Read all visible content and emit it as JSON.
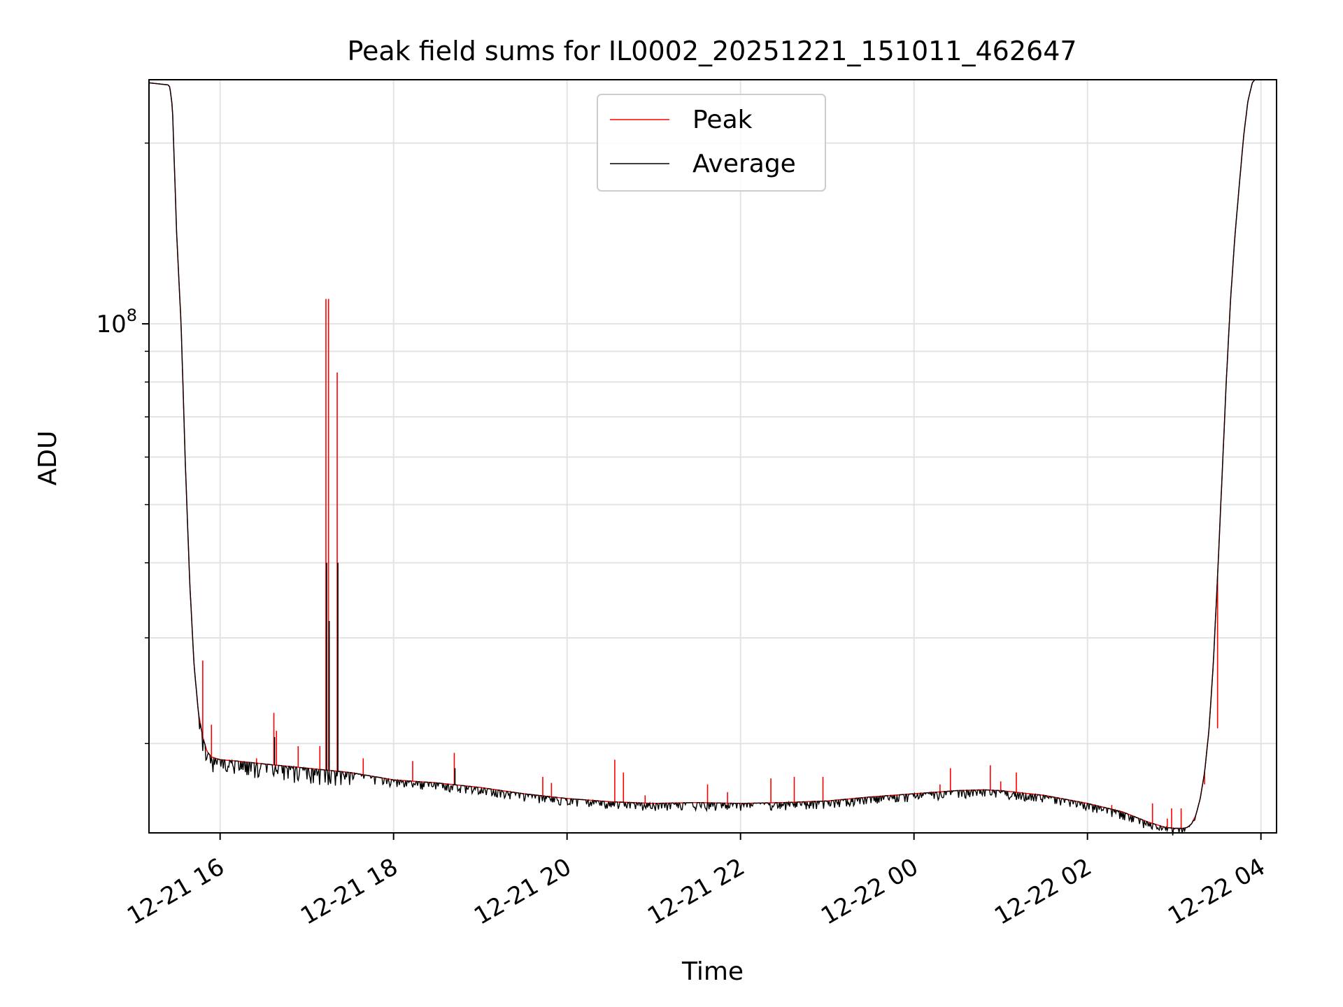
{
  "chart_data": {
    "type": "line",
    "title": "Peak field sums for IL0002_20251221_151011_462647",
    "xlabel": "Time",
    "ylabel": "ADU",
    "yscale": "log",
    "grid": true,
    "legend_location": "upper center",
    "x_units": "hours since 12-21 00:00",
    "xlim": [
      15.18,
      28.18
    ],
    "ylim": [
      14200000,
      255000000
    ],
    "x_ticks": [
      {
        "value": 16,
        "label": "12-21 16"
      },
      {
        "value": 18,
        "label": "12-21 18"
      },
      {
        "value": 20,
        "label": "12-21 20"
      },
      {
        "value": 22,
        "label": "12-21 22"
      },
      {
        "value": 24,
        "label": "12-22 00"
      },
      {
        "value": 26,
        "label": "12-22 02"
      },
      {
        "value": 28,
        "label": "12-22 04"
      }
    ],
    "y_major_ticks": [
      {
        "value": 100000000,
        "base": "10",
        "exponent": "8"
      }
    ],
    "y_minor_ticks": [
      20000000,
      30000000,
      40000000,
      50000000,
      60000000,
      70000000,
      80000000,
      90000000,
      200000000
    ],
    "series": [
      {
        "name": "Peak",
        "color": "#ff0000",
        "baseline": {
          "x": [
            15.18,
            15.4,
            15.42,
            15.45,
            15.5,
            15.55,
            15.6,
            15.65,
            15.7,
            15.75,
            15.8,
            15.85,
            15.9,
            16.0,
            16.2,
            16.5,
            17.0,
            17.5,
            18.0,
            18.5,
            19.0,
            19.5,
            20.0,
            20.5,
            21.0,
            21.5,
            22.0,
            22.5,
            23.0,
            23.5,
            24.0,
            24.5,
            24.8,
            25.0,
            25.5,
            26.0,
            26.4,
            26.7,
            26.9,
            27.0,
            27.1,
            27.15,
            27.2,
            27.25,
            27.3,
            27.35,
            27.4,
            27.45,
            27.5,
            27.55,
            27.6,
            27.65,
            27.7,
            27.75,
            27.8,
            27.85,
            27.9,
            27.93
          ],
          "y": [
            252000000,
            250000000,
            248000000,
            230000000,
            140000000,
            100000000,
            58000000,
            37000000,
            27000000,
            22500000,
            20500000,
            19400000,
            19000000,
            18800000,
            18700000,
            18500000,
            18200000,
            17900000,
            17400000,
            17200000,
            16900000,
            16500000,
            16200000,
            16000000,
            15900000,
            15950000,
            15900000,
            15950000,
            16050000,
            16300000,
            16500000,
            16700000,
            16750000,
            16700000,
            16400000,
            15900000,
            15400000,
            14800000,
            14500000,
            14450000,
            14450000,
            14500000,
            14700000,
            15200000,
            16200000,
            17900000,
            21000000,
            27000000,
            38000000,
            55000000,
            80000000,
            110000000,
            140000000,
            170000000,
            205000000,
            235000000,
            252000000,
            255000000
          ]
        },
        "spikes": [
          {
            "x": 15.8,
            "y": 27500000
          },
          {
            "x": 15.9,
            "y": 21500000
          },
          {
            "x": 16.42,
            "y": 18900000
          },
          {
            "x": 16.62,
            "y": 22500000
          },
          {
            "x": 16.65,
            "y": 21000000
          },
          {
            "x": 16.9,
            "y": 19800000
          },
          {
            "x": 17.15,
            "y": 19800000
          },
          {
            "x": 17.22,
            "y": 110000000
          },
          {
            "x": 17.25,
            "y": 110000000
          },
          {
            "x": 17.35,
            "y": 83000000
          },
          {
            "x": 17.65,
            "y": 18900000
          },
          {
            "x": 18.22,
            "y": 18700000
          },
          {
            "x": 18.7,
            "y": 19300000
          },
          {
            "x": 19.72,
            "y": 17600000
          },
          {
            "x": 19.82,
            "y": 17200000
          },
          {
            "x": 20.55,
            "y": 18800000
          },
          {
            "x": 20.65,
            "y": 17900000
          },
          {
            "x": 20.9,
            "y": 16400000
          },
          {
            "x": 21.62,
            "y": 17100000
          },
          {
            "x": 21.85,
            "y": 16600000
          },
          {
            "x": 22.35,
            "y": 17500000
          },
          {
            "x": 22.62,
            "y": 17600000
          },
          {
            "x": 22.95,
            "y": 17600000
          },
          {
            "x": 24.3,
            "y": 17100000
          },
          {
            "x": 24.42,
            "y": 18200000
          },
          {
            "x": 24.88,
            "y": 18400000
          },
          {
            "x": 25.0,
            "y": 17300000
          },
          {
            "x": 25.18,
            "y": 17900000
          },
          {
            "x": 26.28,
            "y": 15800000
          },
          {
            "x": 26.75,
            "y": 15900000
          },
          {
            "x": 26.92,
            "y": 15000000
          },
          {
            "x": 26.97,
            "y": 15600000
          },
          {
            "x": 27.08,
            "y": 15600000
          },
          {
            "x": 27.35,
            "y": 17100000
          },
          {
            "x": 27.5,
            "y": 21200000
          }
        ]
      },
      {
        "name": "Average",
        "color": "#000000",
        "baseline_same_as": "Peak",
        "spikes": [
          {
            "x": 17.22,
            "y": 40000000
          },
          {
            "x": 17.25,
            "y": 32000000
          },
          {
            "x": 17.35,
            "y": 40000000
          },
          {
            "x": 16.62,
            "y": 20500000
          },
          {
            "x": 18.7,
            "y": 18200000
          }
        ],
        "noise_note": "many small downward ticks below the curve"
      }
    ]
  }
}
